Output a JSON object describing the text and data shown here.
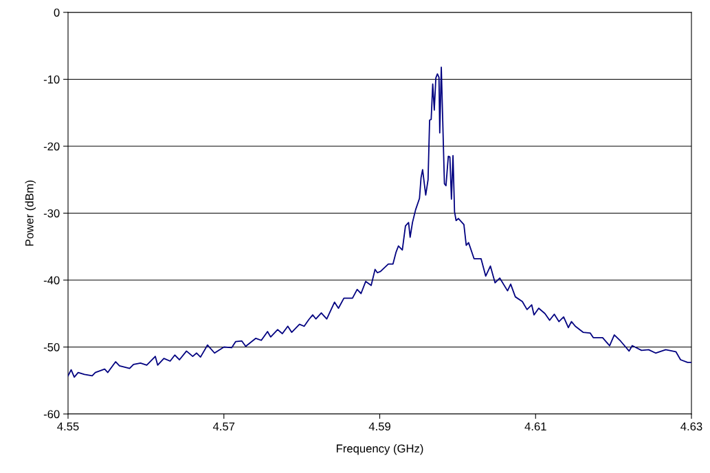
{
  "chart_data": {
    "type": "line",
    "xlabel": "Frequency (GHz)",
    "ylabel": "Power (dBm)",
    "xlim": [
      4.55,
      4.63
    ],
    "xticks": [
      {
        "value": 4.55,
        "label": "4.55"
      },
      {
        "value": 4.57,
        "label": "4.57"
      },
      {
        "value": 4.59,
        "label": "4.59"
      },
      {
        "value": 4.61,
        "label": "4.61"
      },
      {
        "value": 4.63,
        "label": "4.63"
      }
    ],
    "ylim": [
      -60,
      0
    ],
    "yticks": [
      -60,
      -50,
      -40,
      -30,
      -20,
      -10,
      0
    ],
    "grid": "y",
    "legend": false,
    "marker": "none",
    "line_style": "solid",
    "series": [
      {
        "color": "#000080",
        "x": [
          4.55,
          4.5504,
          4.5508,
          4.5513,
          4.5521,
          4.5531,
          4.5535,
          4.5547,
          4.5551,
          4.5561,
          4.5566,
          4.5579,
          4.5584,
          4.5593,
          4.5601,
          4.5612,
          4.5615,
          4.5623,
          4.5631,
          4.5637,
          4.5643,
          4.5652,
          4.566,
          4.5665,
          4.567,
          4.5679,
          4.5688,
          4.57,
          4.571,
          4.5715,
          4.5723,
          4.5728,
          4.5741,
          4.5748,
          4.5756,
          4.576,
          4.5769,
          4.5775,
          4.5782,
          4.5787,
          4.5797,
          4.5803,
          4.5809,
          4.5814,
          4.5818,
          4.5825,
          4.5832,
          4.5842,
          4.5847,
          4.5854,
          4.5865,
          4.5871,
          4.5876,
          4.5882,
          4.5889,
          4.5894,
          4.5897,
          4.5901,
          4.5911,
          4.5917,
          4.5921,
          4.5924,
          4.5929,
          4.5933,
          4.5937,
          4.5939,
          4.5942,
          4.5946,
          4.5951,
          4.5953,
          4.5955,
          4.5959,
          4.5962,
          4.5964,
          4.5966,
          4.5968,
          4.597,
          4.5972,
          4.5974,
          4.5976,
          4.5977,
          4.5979,
          4.5983,
          4.5985,
          4.5988,
          4.599,
          4.5992,
          4.5994,
          4.5996,
          4.5998,
          4.6001,
          4.6008,
          4.6011,
          4.6014,
          4.6021,
          4.603,
          4.6036,
          4.6042,
          4.6048,
          4.6054,
          4.6064,
          4.6068,
          4.6074,
          4.6083,
          4.6089,
          4.6095,
          4.6098,
          4.6104,
          4.6112,
          4.6118,
          4.6124,
          4.613,
          4.6136,
          4.6142,
          4.6146,
          4.6151,
          4.6161,
          4.617,
          4.6174,
          4.6186,
          4.6195,
          4.6201,
          4.6209,
          4.622,
          4.6224,
          4.6236,
          4.6245,
          4.6254,
          4.6267,
          4.628,
          4.6286,
          4.6295,
          4.63
        ],
        "values": [
          -54.3,
          -53.4,
          -54.5,
          -53.8,
          -54.1,
          -54.3,
          -53.8,
          -53.3,
          -53.8,
          -52.2,
          -52.8,
          -53.2,
          -52.6,
          -52.4,
          -52.7,
          -51.4,
          -52.7,
          -51.7,
          -52.1,
          -51.2,
          -51.9,
          -50.6,
          -51.4,
          -50.9,
          -51.5,
          -49.7,
          -50.9,
          -50.0,
          -50.1,
          -49.2,
          -49.1,
          -49.9,
          -48.7,
          -49.0,
          -47.7,
          -48.5,
          -47.4,
          -48.0,
          -46.9,
          -47.8,
          -46.6,
          -46.9,
          -45.9,
          -45.2,
          -45.8,
          -44.9,
          -45.8,
          -43.3,
          -44.2,
          -42.7,
          -42.7,
          -41.4,
          -42.0,
          -40.2,
          -40.8,
          -38.4,
          -38.9,
          -38.7,
          -37.6,
          -37.6,
          -35.8,
          -34.9,
          -35.5,
          -31.9,
          -31.4,
          -33.6,
          -31.4,
          -29.5,
          -27.8,
          -24.7,
          -23.5,
          -27.3,
          -25.0,
          -16.1,
          -16.0,
          -10.7,
          -14.6,
          -9.8,
          -9.2,
          -9.7,
          -18.0,
          -8.2,
          -25.6,
          -25.9,
          -21.5,
          -21.6,
          -27.9,
          -21.4,
          -29.8,
          -31.1,
          -30.8,
          -31.7,
          -34.8,
          -34.4,
          -36.8,
          -36.8,
          -39.4,
          -37.9,
          -40.4,
          -39.7,
          -41.6,
          -40.6,
          -42.5,
          -43.2,
          -44.4,
          -43.7,
          -45.2,
          -44.2,
          -45.0,
          -46.0,
          -45.1,
          -46.2,
          -45.5,
          -47.1,
          -46.2,
          -46.9,
          -47.8,
          -47.9,
          -48.6,
          -48.6,
          -49.8,
          -48.2,
          -49.1,
          -50.6,
          -49.8,
          -50.5,
          -50.4,
          -50.9,
          -50.4,
          -50.7,
          -51.9,
          -52.3,
          -52.3
        ]
      }
    ]
  }
}
